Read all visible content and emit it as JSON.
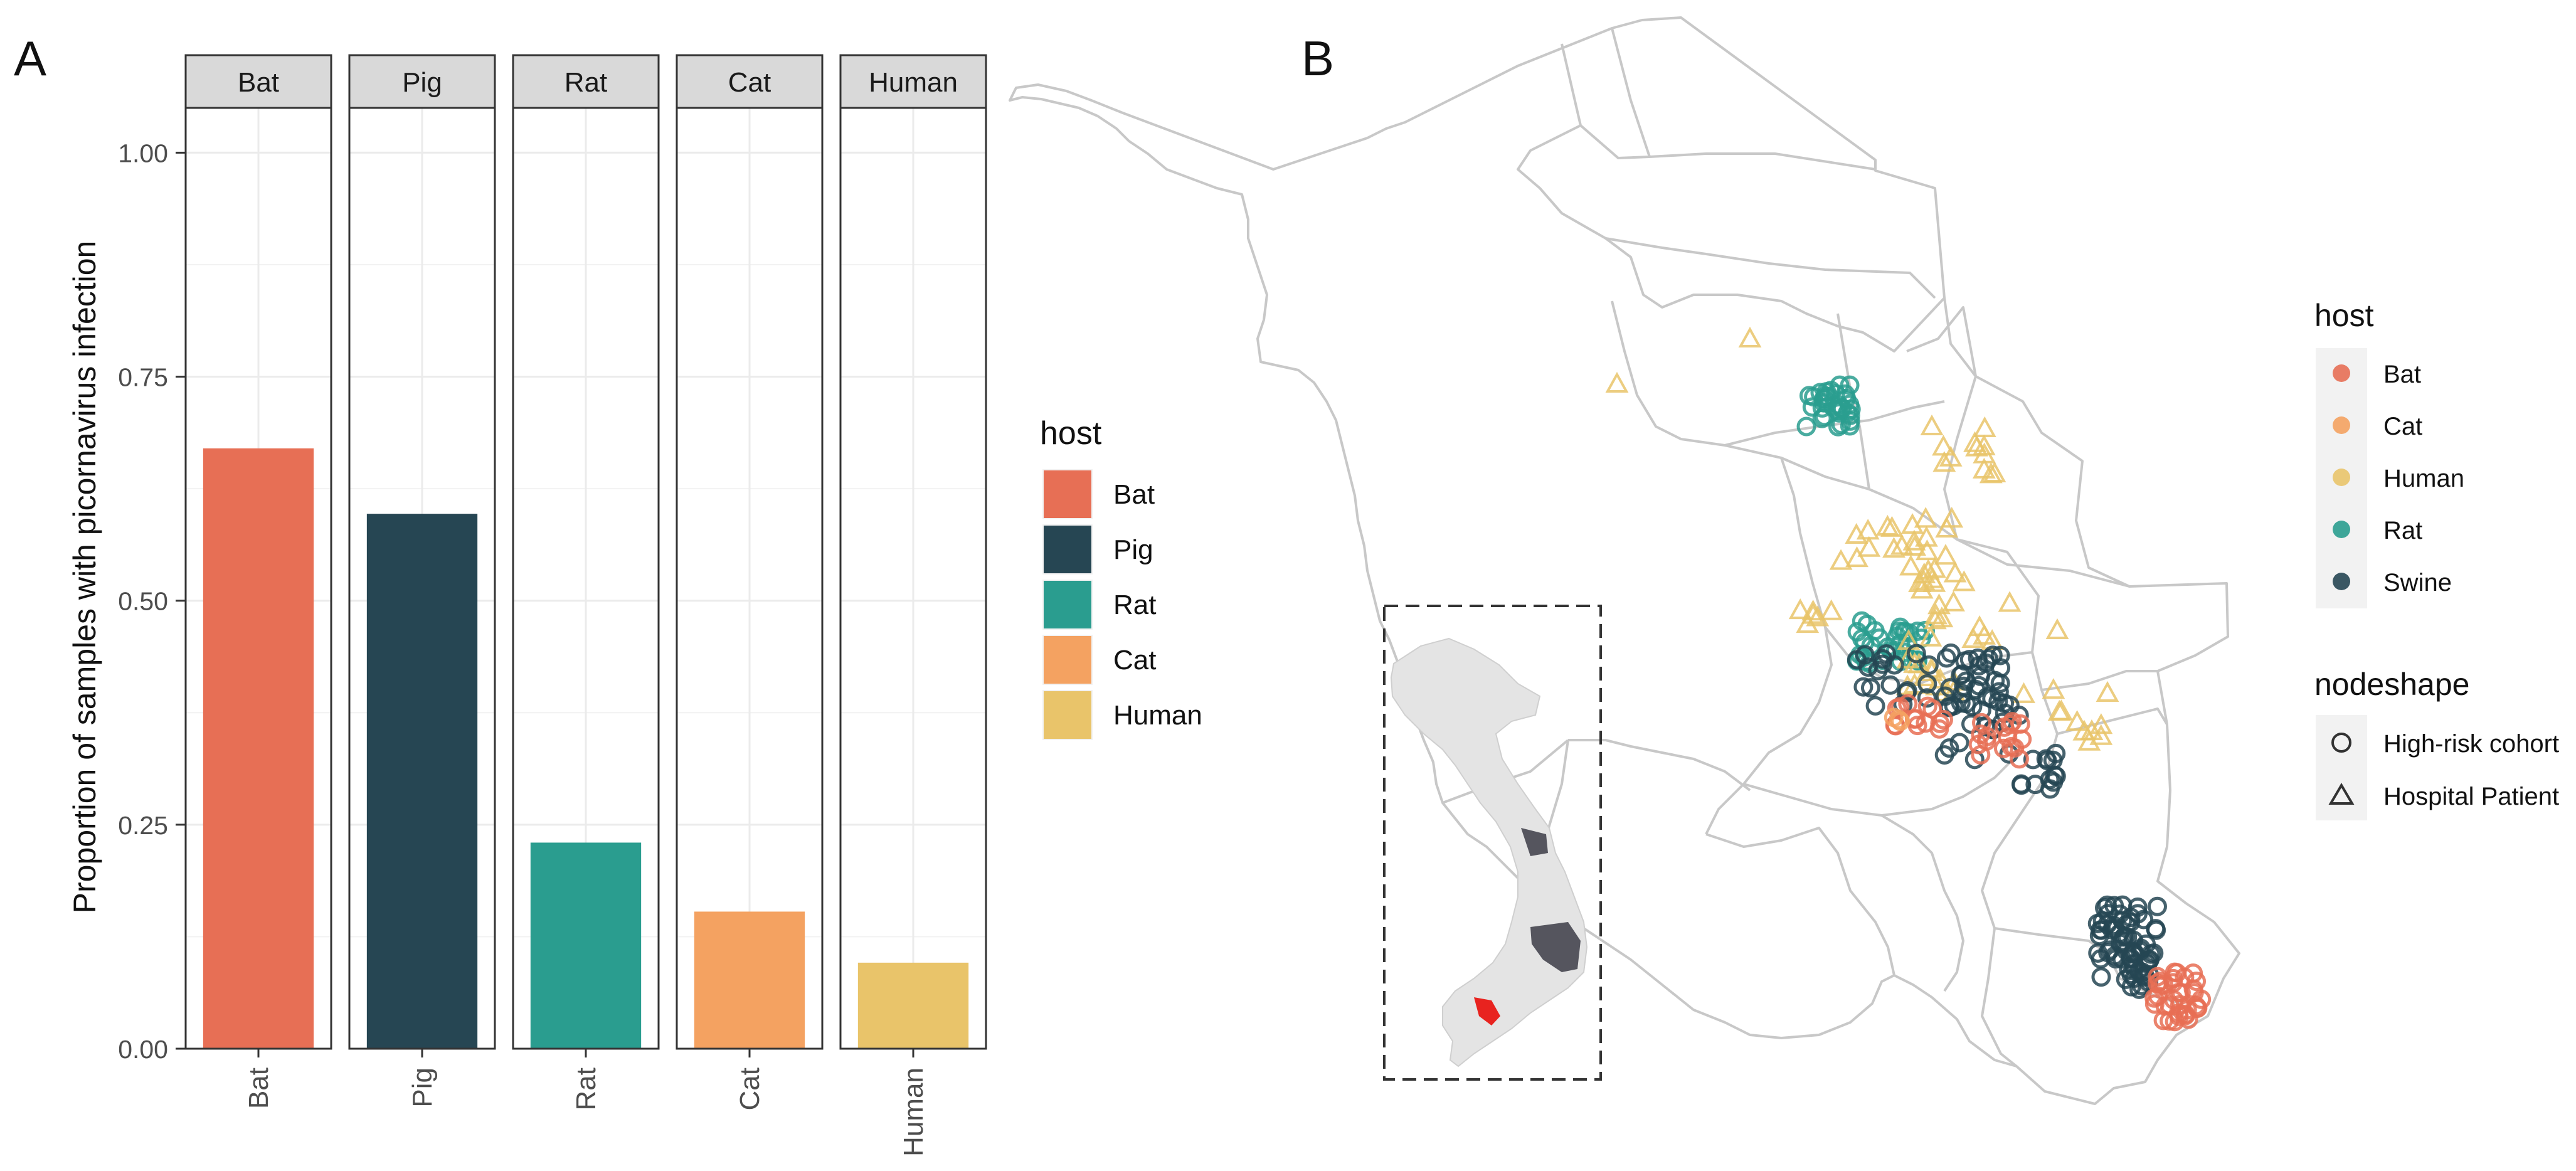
{
  "panels": {
    "a": {
      "label": "A"
    },
    "b": {
      "label": "B"
    }
  },
  "chart_data": [
    {
      "type": "bar",
      "panel": "A",
      "facets": [
        "Bat",
        "Pig",
        "Rat",
        "Cat",
        "Human"
      ],
      "categories": [
        "Bat",
        "Pig",
        "Rat",
        "Cat",
        "Human"
      ],
      "values": [
        0.67,
        0.597,
        0.23,
        0.153,
        0.096
      ],
      "ylabel": "Proportion of samples with picornavirus infection",
      "xlabel": "",
      "ylim": [
        0,
        1.05
      ],
      "yticks": [
        0,
        0.25,
        0.5,
        0.75,
        1.0
      ],
      "ytick_labels": [
        "0.00",
        "0.25",
        "0.50",
        "0.75",
        "1.00"
      ],
      "grid": true,
      "legend": {
        "title": "host",
        "position": "right",
        "entries": [
          {
            "label": "Bat",
            "color": "#E76F55"
          },
          {
            "label": "Pig",
            "color": "#264653"
          },
          {
            "label": "Rat",
            "color": "#2A9D8F"
          },
          {
            "label": "Cat",
            "color": "#F4A261"
          },
          {
            "label": "Human",
            "color": "#E9C46A"
          }
        ]
      }
    },
    {
      "type": "scatter",
      "panel": "B",
      "description_type": "map",
      "series": [
        {
          "name": "Bat",
          "shape": "circle",
          "color": "#E76F55"
        },
        {
          "name": "Cat",
          "shape": "circle",
          "color": "#F4A261"
        },
        {
          "name": "Human",
          "shape": "triangle",
          "color": "#E9C46A"
        },
        {
          "name": "Rat",
          "shape": "circle",
          "color": "#2A9D8F"
        },
        {
          "name": "Swine",
          "shape": "circle",
          "color": "#264653"
        }
      ],
      "legends": [
        {
          "title": "host",
          "position": "right",
          "entries": [
            {
              "label": "Bat",
              "color": "#E76F55"
            },
            {
              "label": "Cat",
              "color": "#F4A261"
            },
            {
              "label": "Human",
              "color": "#E9C46A"
            },
            {
              "label": "Rat",
              "color": "#2A9D8F"
            },
            {
              "label": "Swine",
              "color": "#264653"
            }
          ]
        },
        {
          "title": "nodeshape",
          "position": "right",
          "entries": [
            {
              "label": "High-risk cohort",
              "shape": "circle"
            },
            {
              "label": "Hospital Patient",
              "shape": "triangle"
            }
          ]
        }
      ]
    }
  ]
}
